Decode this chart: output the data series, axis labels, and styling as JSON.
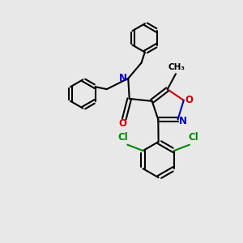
{
  "bg_color": "#e8e8e8",
  "bond_color": "#000000",
  "N_color": "#0000cc",
  "O_color": "#cc0000",
  "Cl_color": "#008800",
  "line_width": 1.5,
  "fig_width": 3.0,
  "fig_height": 3.0,
  "dpi": 100,
  "xlim": [
    0,
    10
  ],
  "ylim": [
    0,
    10
  ]
}
